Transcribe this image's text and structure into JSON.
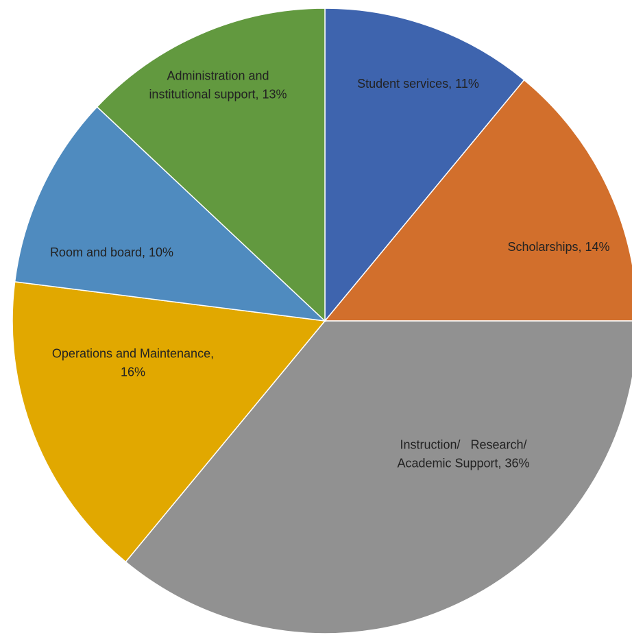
{
  "chart_data": {
    "type": "pie",
    "title": "",
    "start_angle_deg": 0,
    "direction": "clockwise",
    "slices": [
      {
        "label": [
          "Student services, 11%"
        ],
        "value": 11,
        "color": "#3E64AE"
      },
      {
        "label": [
          "Scholarships, 14%"
        ],
        "value": 14,
        "color": "#D26F2C"
      },
      {
        "label": [
          "Instruction/   Research/",
          "Academic Support, 36%"
        ],
        "value": 36,
        "color": "#919191"
      },
      {
        "label": [
          "Operations and Maintenance,",
          "16%"
        ],
        "value": 16,
        "color": "#E1A800"
      },
      {
        "label": [
          "Room and board, 10%"
        ],
        "value": 10,
        "color": "#4F8BBF"
      },
      {
        "label": [
          "Administration and",
          "institutional support, 13%"
        ],
        "value": 13,
        "color": "#62993F"
      }
    ]
  }
}
